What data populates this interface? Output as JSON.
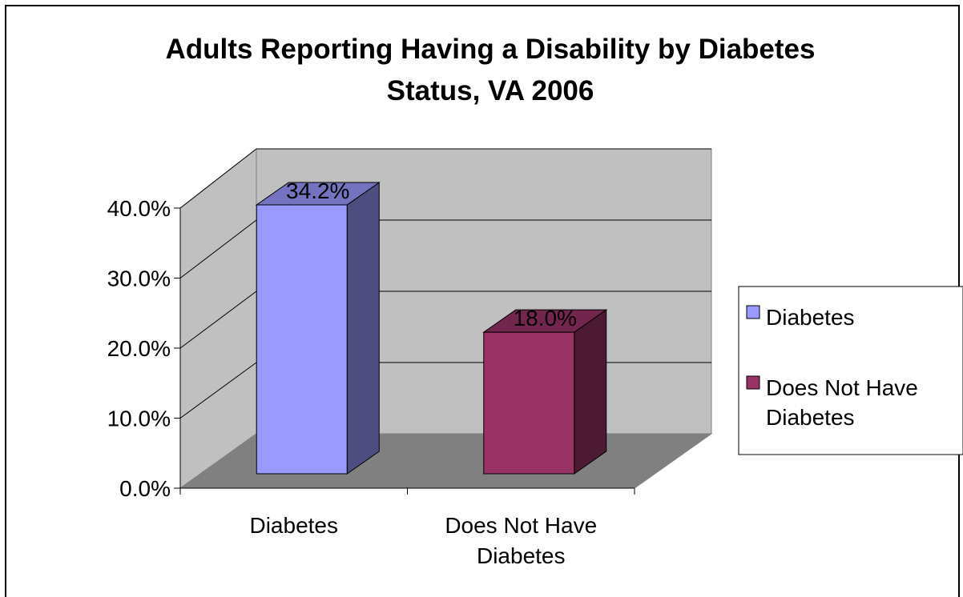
{
  "chart_data": {
    "type": "bar",
    "title_lines": [
      "Adults Reporting Having a Disability by Diabetes",
      "Status, VA 2006"
    ],
    "categories": [
      [
        "Diabetes"
      ],
      [
        "Does Not Have",
        "Diabetes"
      ]
    ],
    "values": [
      34.2,
      18.0
    ],
    "data_labels": [
      "34.2%",
      "18.0%"
    ],
    "ylim": [
      0,
      40
    ],
    "y_ticks": [
      {
        "value": 0,
        "label": "0.0%"
      },
      {
        "value": 10,
        "label": "10.0%"
      },
      {
        "value": 20,
        "label": "20.0%"
      },
      {
        "value": 30,
        "label": "30.0%"
      },
      {
        "value": 40,
        "label": "40.0%"
      }
    ],
    "legend": {
      "placement": "right",
      "entries": [
        {
          "lines": [
            "Diabetes"
          ],
          "color": "#9999ff"
        },
        {
          "lines": [
            "Does Not Have",
            "Diabetes"
          ],
          "color": "#993366"
        }
      ]
    },
    "colors": {
      "series_front": [
        "#9999ff",
        "#993366"
      ],
      "series_side": [
        "#4d4d80",
        "#4d1a33"
      ],
      "series_top": [
        "#7373bf",
        "#73264d"
      ],
      "wall": "#c0c0c0",
      "floor": "#808080"
    },
    "grid": true,
    "style": "3d"
  }
}
